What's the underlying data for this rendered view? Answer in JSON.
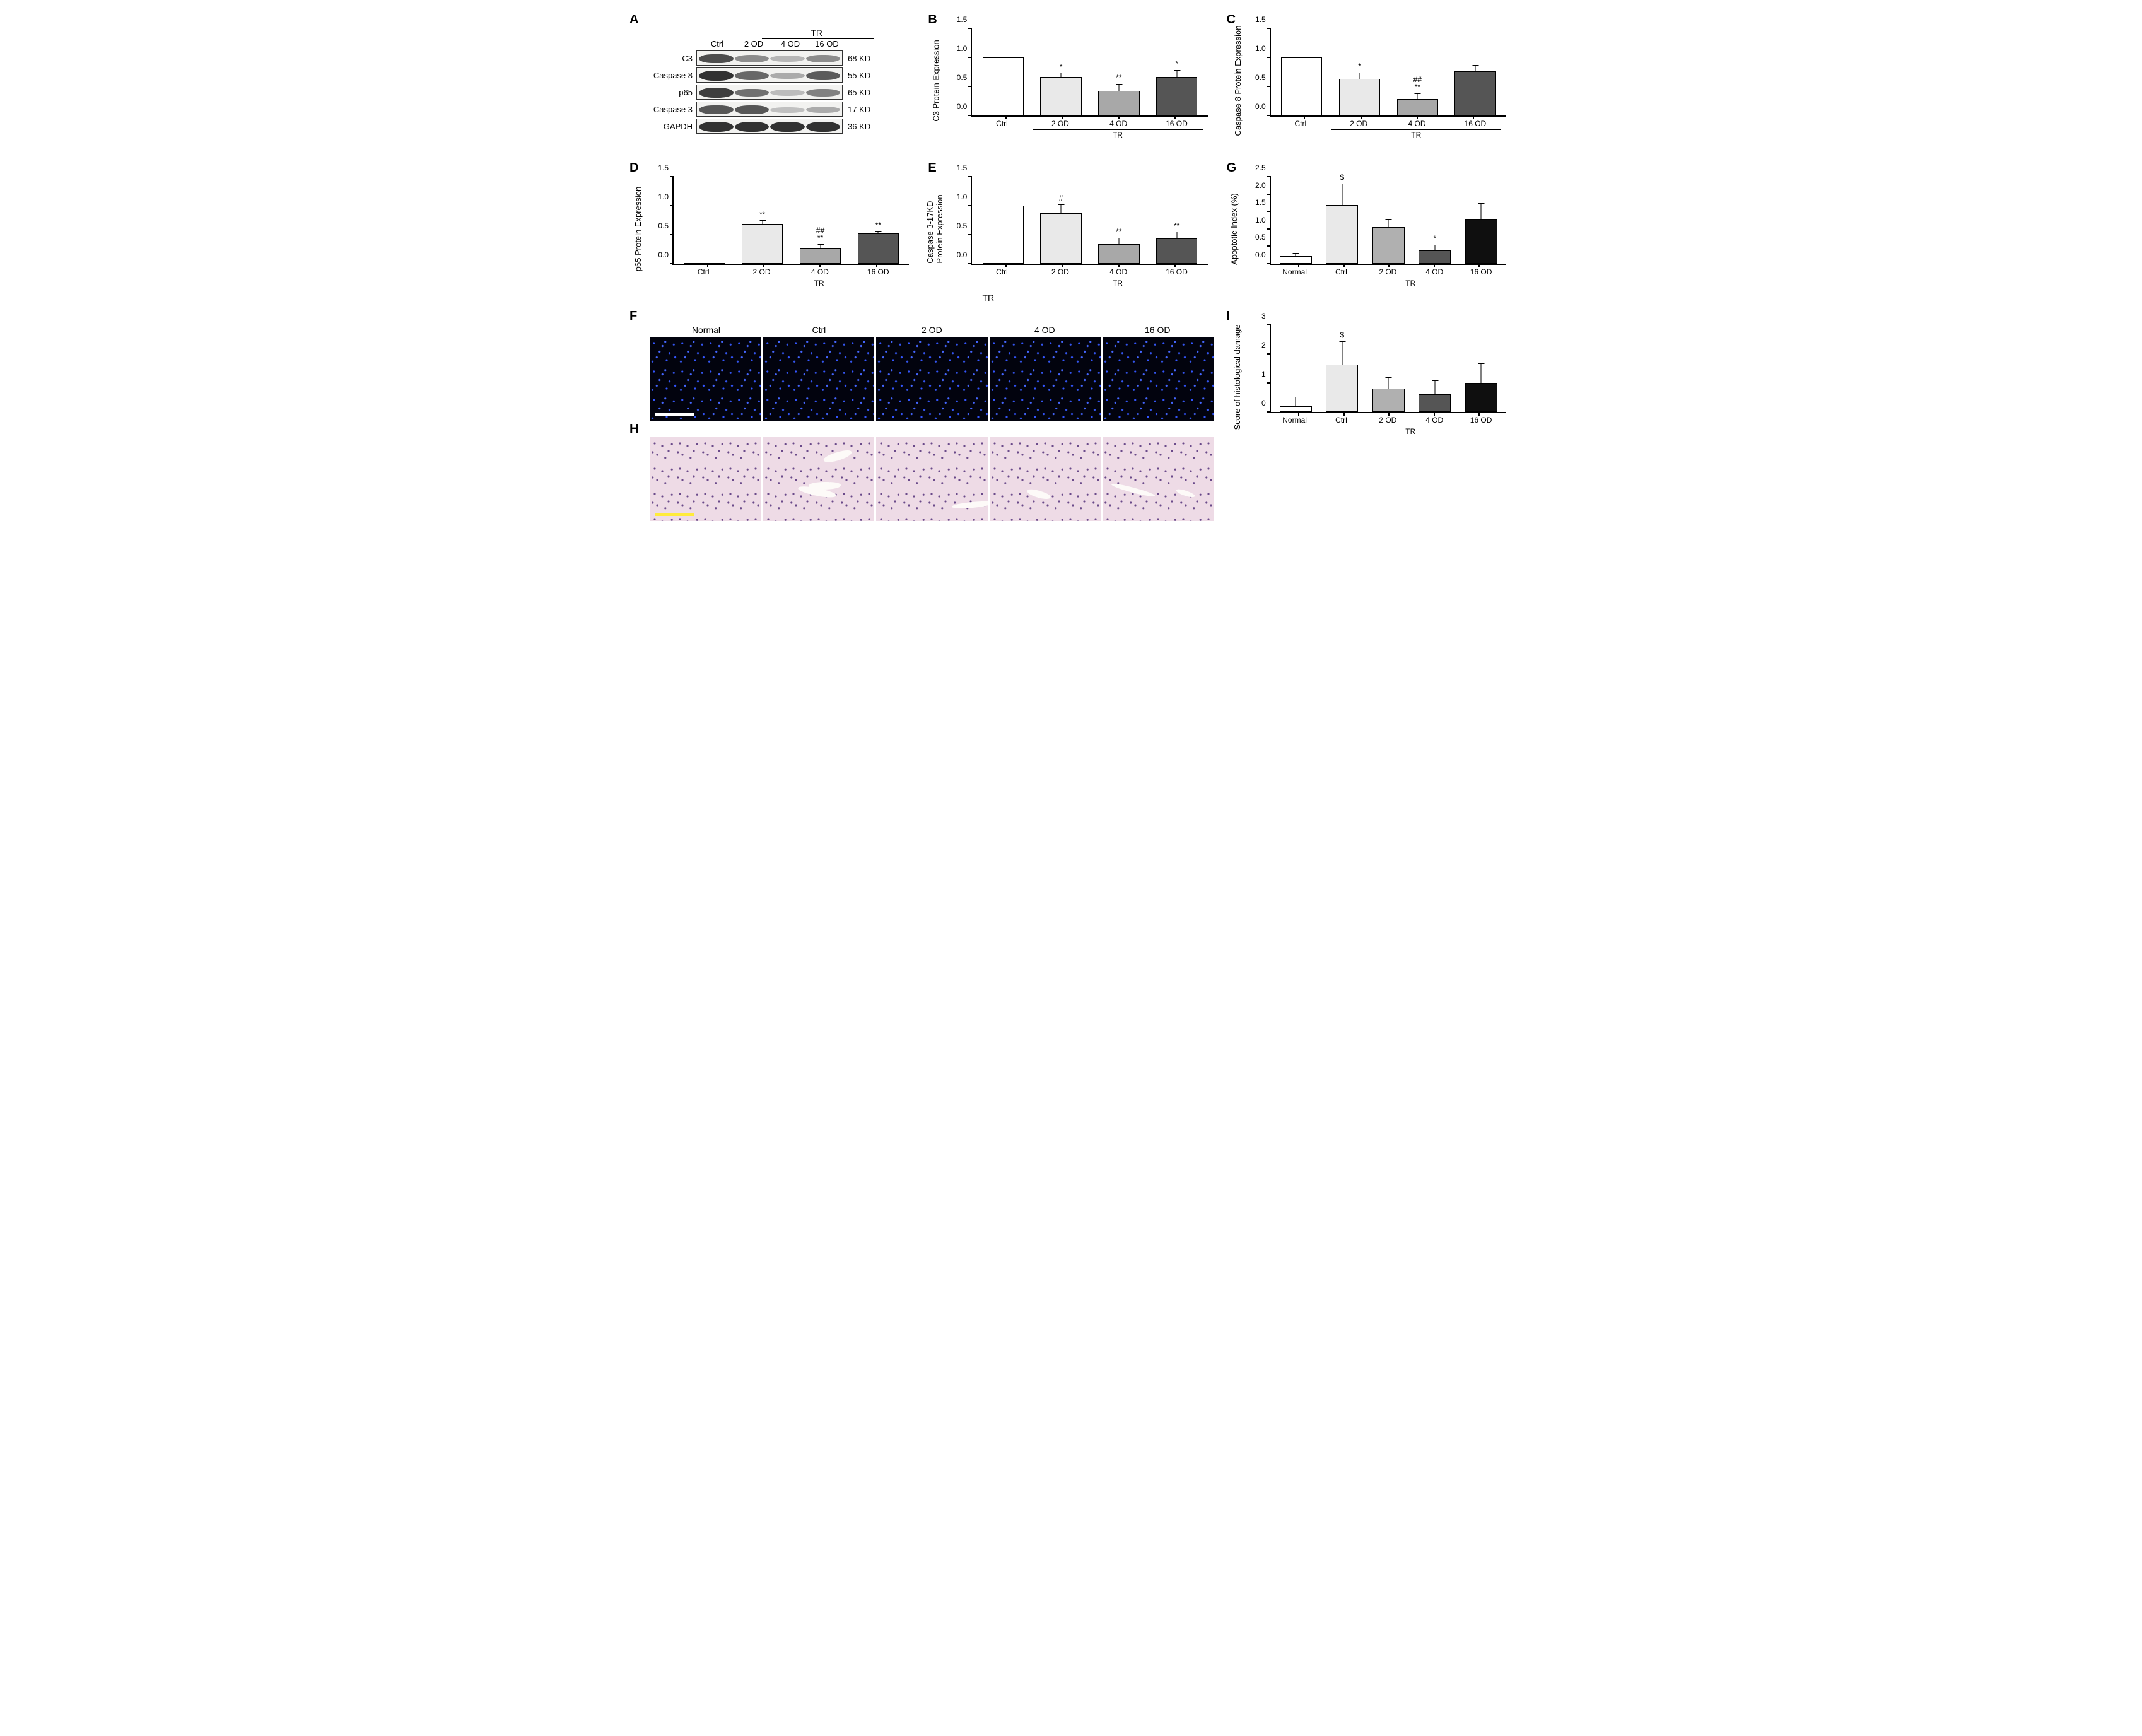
{
  "colors": {
    "bar_border": "#000000",
    "axis": "#000000",
    "band_dark": "#2e2e2e",
    "band_med": "#4d4d4d",
    "band_light": "#737373",
    "fluo_bg": "#02030e",
    "he_bg": "#eedbe6",
    "scalebar_white": "#ffffff",
    "scalebar_yellow": "#ffeb3b"
  },
  "typography": {
    "label_fontsize": 13,
    "axis_fontsize": 12
  },
  "panel_A": {
    "label": "A",
    "group_label": "TR",
    "columns": [
      "Ctrl",
      "2 OD",
      "4 OD",
      "16 OD"
    ],
    "rows": [
      {
        "name": "C3",
        "kd": "68 KD",
        "intensities": [
          0.85,
          0.55,
          0.35,
          0.55
        ]
      },
      {
        "name": "Caspase 8",
        "kd": "55 KD",
        "intensities": [
          0.98,
          0.72,
          0.4,
          0.78
        ]
      },
      {
        "name": "p65",
        "kd": "65 KD",
        "intensities": [
          0.92,
          0.68,
          0.32,
          0.6
        ]
      },
      {
        "name": "Caspase 3",
        "kd": "17 KD",
        "intensities": [
          0.8,
          0.8,
          0.3,
          0.4
        ]
      },
      {
        "name": "GAPDH",
        "kd": "36 KD",
        "intensities": [
          0.98,
          0.98,
          0.98,
          0.98
        ]
      }
    ]
  },
  "charts_BCDE": [
    {
      "label": "B",
      "ylabel": "C3 Protein Expression",
      "ylim": [
        0,
        1.5
      ],
      "ytick_step": 0.5,
      "categories": [
        "Ctrl",
        "2 OD",
        "4 OD",
        "16 OD"
      ],
      "values": [
        1.0,
        0.66,
        0.42,
        0.66
      ],
      "errors": [
        0,
        0.09,
        0.14,
        0.14
      ],
      "sig": [
        "",
        "*",
        "**",
        "*"
      ],
      "bar_colors": [
        "#ffffff",
        "#e9e9e9",
        "#a8a8a8",
        "#555555"
      ],
      "tr_from": 1,
      "tr_to": 3,
      "tr_label": "TR"
    },
    {
      "label": "C",
      "ylabel": "Caspase 8 Protein Expression",
      "ylim": [
        0,
        1.5
      ],
      "ytick_step": 0.5,
      "categories": [
        "Ctrl",
        "2 OD",
        "4 OD",
        "16 OD"
      ],
      "values": [
        1.0,
        0.63,
        0.28,
        0.76
      ],
      "errors": [
        0,
        0.13,
        0.12,
        0.12
      ],
      "sig": [
        "",
        "*",
        "##\n**",
        ""
      ],
      "bar_colors": [
        "#ffffff",
        "#e9e9e9",
        "#a8a8a8",
        "#555555"
      ],
      "tr_from": 1,
      "tr_to": 3,
      "tr_label": "TR"
    },
    {
      "label": "D",
      "ylabel": "p65 Protein Expression",
      "ylim": [
        0,
        1.5
      ],
      "ytick_step": 0.5,
      "categories": [
        "Ctrl",
        "2 OD",
        "4 OD",
        "16 OD"
      ],
      "values": [
        1.0,
        0.68,
        0.27,
        0.52
      ],
      "errors": [
        0,
        0.08,
        0.09,
        0.06
      ],
      "sig": [
        "",
        "**",
        "##\n**",
        "**"
      ],
      "bar_colors": [
        "#ffffff",
        "#e9e9e9",
        "#a8a8a8",
        "#555555"
      ],
      "tr_from": 1,
      "tr_to": 3,
      "tr_label": "TR"
    },
    {
      "label": "E",
      "ylabel": "Caspase 3-17KD\nProtein Expression",
      "ylim": [
        0,
        1.5
      ],
      "ytick_step": 0.5,
      "categories": [
        "Ctrl",
        "2 OD",
        "4 OD",
        "16 OD"
      ],
      "values": [
        1.0,
        0.87,
        0.34,
        0.44
      ],
      "errors": [
        0,
        0.17,
        0.13,
        0.13
      ],
      "sig": [
        "",
        "#",
        "**",
        "**"
      ],
      "bar_colors": [
        "#ffffff",
        "#e9e9e9",
        "#a8a8a8",
        "#555555"
      ],
      "tr_from": 1,
      "tr_to": 3,
      "tr_label": "TR"
    }
  ],
  "chart_G": {
    "label": "G",
    "ylabel": "Apoptotic Index (%)",
    "ylim": [
      0,
      2.5
    ],
    "ytick_step": 0.5,
    "categories": [
      "Normal",
      "Ctrl",
      "2 OD",
      "4 OD",
      "16 OD"
    ],
    "values": [
      0.22,
      1.68,
      1.05,
      0.38,
      1.28
    ],
    "errors": [
      0.12,
      0.65,
      0.27,
      0.2,
      0.5
    ],
    "sig": [
      "",
      "$",
      "",
      "*",
      ""
    ],
    "bar_colors": [
      "#ffffff",
      "#e9e9e9",
      "#b0b0b0",
      "#555555",
      "#0f0f0f"
    ],
    "tr_from": 1,
    "tr_to": 4,
    "tr_label": "TR"
  },
  "chart_I": {
    "label": "I",
    "ylabel": "Score of histological damage",
    "ylim": [
      0,
      3
    ],
    "ytick_step": 1,
    "categories": [
      "Normal",
      "Ctrl",
      "2 OD",
      "4 OD",
      "16 OD"
    ],
    "values": [
      0.2,
      1.62,
      0.8,
      0.6,
      1.0
    ],
    "errors": [
      0.43,
      0.86,
      0.45,
      0.55,
      0.72
    ],
    "sig": [
      "",
      "$",
      "",
      "",
      ""
    ],
    "bar_colors": [
      "#ffffff",
      "#e9e9e9",
      "#b0b0b0",
      "#555555",
      "#0f0f0f"
    ],
    "tr_from": 1,
    "tr_to": 4,
    "tr_label": "TR"
  },
  "panel_F": {
    "label": "F",
    "header": [
      "Normal",
      "Ctrl",
      "2 OD",
      "4 OD",
      "16 OD"
    ],
    "tr_label": "TR",
    "type": "fluorescence",
    "bg": "#02030e",
    "scalebar_color": "#ffffff",
    "scalebar_width_frac": 0.35
  },
  "panel_H": {
    "label": "H",
    "type": "HE",
    "bg": "#eedbe6",
    "scalebar_color": "#ffeb3b",
    "scalebar_width_frac": 0.35,
    "tear_intensity": [
      0,
      0.6,
      0.25,
      0.15,
      0.35
    ]
  }
}
